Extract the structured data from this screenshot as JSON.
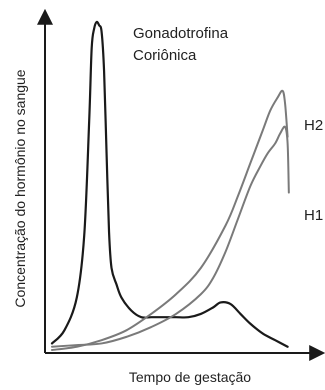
{
  "chart_data": {
    "type": "line",
    "xlabel": "Tempo de gestação",
    "ylabel": "Concentração do hormônio no sangue",
    "xlim": [
      0,
      100
    ],
    "ylim": [
      0,
      100
    ],
    "grid": false,
    "axis_ticks": false,
    "series": [
      {
        "name": "Gonadotrofina Coriônica",
        "label_lines": [
          "Gonadotrofina",
          "Coriônica"
        ],
        "color": "#1a1a1a",
        "x": [
          0,
          5,
          10,
          13,
          15,
          16,
          17,
          18,
          19,
          20,
          21,
          22,
          23,
          24,
          26,
          28,
          32,
          36,
          40,
          45,
          50,
          55,
          60,
          65,
          68,
          72,
          76,
          80,
          85,
          90,
          95
        ],
        "y": [
          2,
          6,
          16,
          35,
          70,
          92,
          98,
          100,
          99,
          97,
          85,
          60,
          36,
          25,
          20,
          16,
          12,
          10,
          10,
          10,
          10,
          10,
          11,
          13,
          14.5,
          14,
          11,
          8,
          5,
          3,
          1
        ]
      },
      {
        "name": "H2",
        "label_lines": [
          "H2"
        ],
        "color": "#7a7a7a",
        "x": [
          0,
          10,
          20,
          30,
          40,
          50,
          60,
          70,
          75,
          80,
          85,
          88,
          91,
          93,
          94,
          95
        ],
        "y": [
          0,
          1,
          3,
          6,
          11,
          17,
          25,
          38,
          47,
          57,
          67,
          73,
          77,
          79,
          75,
          65
        ]
      },
      {
        "name": "H1",
        "label_lines": [
          "H1"
        ],
        "color": "#7a7a7a",
        "x": [
          0,
          10,
          20,
          30,
          40,
          50,
          60,
          65,
          70,
          75,
          80,
          84,
          87,
          90,
          92,
          94,
          95,
          95.5
        ],
        "y": [
          1,
          1.5,
          2,
          4,
          7,
          11,
          17,
          22,
          30,
          40,
          50,
          56,
          60,
          63,
          66,
          68,
          63,
          48
        ]
      }
    ]
  }
}
